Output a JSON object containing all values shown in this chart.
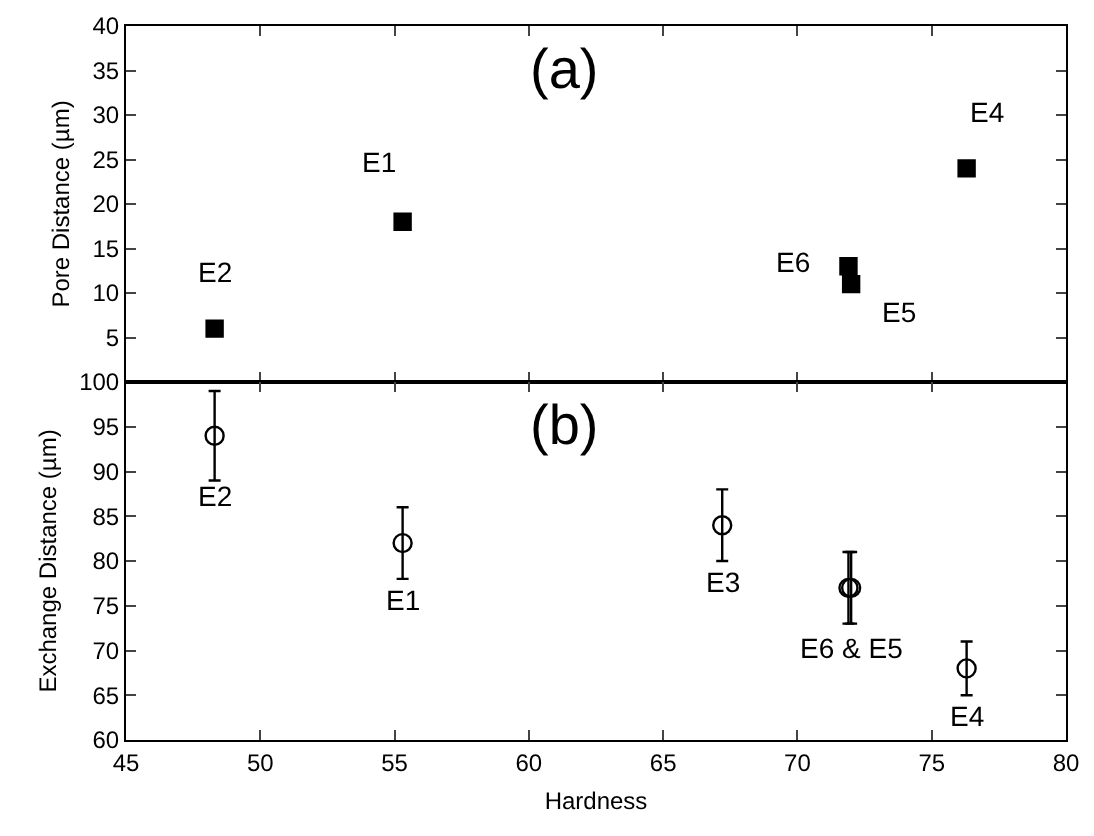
{
  "chart_data": [
    {
      "type": "scatter",
      "ylabel": "Pore Distance (µm)",
      "x": [
        48.3,
        55.3,
        71.9,
        72.0,
        76.3
      ],
      "series": [
        {
          "color": "#000000",
          "values": [
            6,
            18,
            13,
            11,
            24
          ]
        }
      ],
      "marker": "square",
      "xlim": [
        45,
        80
      ],
      "xticks": [
        45,
        50,
        55,
        60,
        65,
        70,
        75,
        80
      ],
      "ylim": [
        0,
        40
      ],
      "yticks": [
        5,
        10,
        15,
        20,
        25,
        30,
        35,
        40
      ],
      "tick_labels": "y",
      "annotations": [
        "(a)",
        {
          "text": "E2",
          "x": 48.3,
          "y": 6
        },
        {
          "text": "E1",
          "x": 55.3,
          "y": 18
        },
        {
          "text": "E6",
          "x": 71.9,
          "y": 13
        },
        {
          "text": "E5",
          "x": 72.0,
          "y": 11
        },
        {
          "text": "E4",
          "x": 76.3,
          "y": 24
        }
      ]
    },
    {
      "type": "scatter",
      "ylabel": "Exchange Distance (µm)",
      "xlabel": "Hardness",
      "x": [
        48.3,
        55.3,
        67.2,
        71.9,
        72.0,
        76.3
      ],
      "series": [
        {
          "color": "#000000",
          "values": [
            94,
            82,
            84,
            77,
            77,
            68
          ],
          "errors": [
            5,
            4,
            4,
            4,
            4,
            3
          ]
        }
      ],
      "marker": "circle",
      "xlim": [
        45,
        80
      ],
      "xticks": [
        45,
        50,
        55,
        60,
        65,
        70,
        75,
        80
      ],
      "ylim": [
        60,
        100
      ],
      "yticks": [
        60,
        65,
        70,
        75,
        80,
        85,
        90,
        95,
        100
      ],
      "annotations": [
        "(b)",
        {
          "text": "E2",
          "x": 48.3,
          "y": 94
        },
        {
          "text": "E1",
          "x": 55.3,
          "y": 82
        },
        {
          "text": "E3",
          "x": 67.2,
          "y": 84
        },
        {
          "text": "E6 & E5",
          "x": 72.0,
          "y": 77
        },
        {
          "text": "E4",
          "x": 76.3,
          "y": 68
        }
      ]
    }
  ]
}
